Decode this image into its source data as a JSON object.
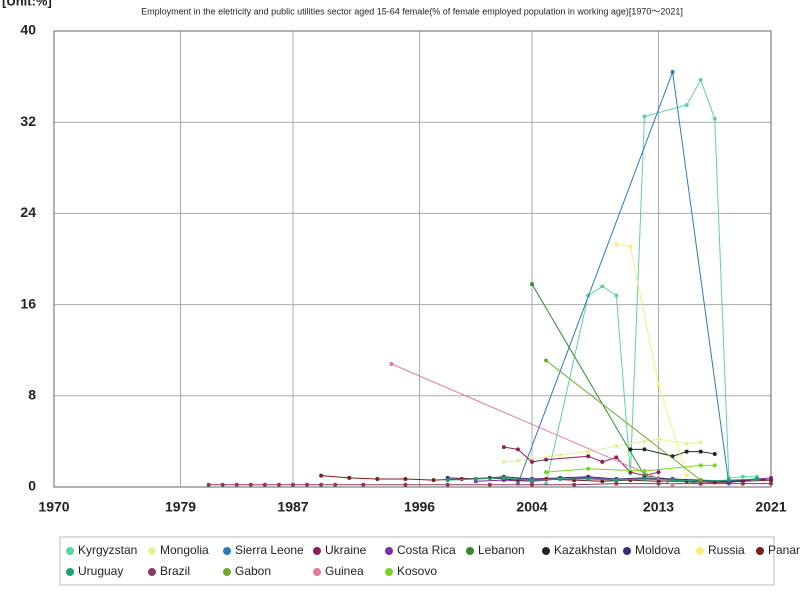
{
  "chart_data": {
    "type": "line",
    "unit": "[Unit:%]",
    "title": "Employment in the eletricity and public utilities sector aged 15-64 female(% of female employed population in working age)[1970～2021]",
    "xlim": [
      1970,
      2021
    ],
    "xticks": [
      1970,
      1979,
      1987,
      1996,
      2004,
      2013,
      2021
    ],
    "ylim": [
      0,
      40
    ],
    "yticks": [
      0,
      8,
      16,
      24,
      32,
      40
    ],
    "grid": true,
    "series": [
      {
        "name": "Kyrgyzstan",
        "color": "#5dd39e",
        "x": [
          2005,
          2008,
          2009,
          2010,
          2011,
          2012,
          2015,
          2016,
          2017,
          2018,
          2019,
          2020
        ],
        "values": [
          0.3,
          16.8,
          17.6,
          16.8,
          1.2,
          32.5,
          33.5,
          35.7,
          32.3,
          0.8,
          0.9,
          0.9
        ]
      },
      {
        "name": "Mongolia",
        "color": "#dff29a",
        "x": [
          2002,
          2003,
          2004,
          2006,
          2008,
          2010,
          2012,
          2013,
          2015,
          2016
        ],
        "values": [
          2.2,
          2.3,
          2.5,
          2.8,
          3.1,
          3.6,
          4.0,
          4.2,
          3.8,
          3.9
        ]
      },
      {
        "name": "Sierra Leone",
        "color": "#2b7bba",
        "x": [
          2003,
          2014,
          2018
        ],
        "values": [
          0.3,
          36.4,
          0.3
        ]
      },
      {
        "name": "Ukraine",
        "color": "#8b2252",
        "x": [
          2002,
          2003,
          2004,
          2005,
          2008,
          2009,
          2010,
          2011,
          2012,
          2013
        ],
        "values": [
          3.5,
          3.3,
          2.2,
          2.4,
          2.7,
          2.2,
          2.6,
          1.3,
          1.0,
          1.3
        ]
      },
      {
        "name": "Costa Rica",
        "color": "#7b2fa0",
        "x": [
          2000,
          2002,
          2004,
          2006,
          2008,
          2010,
          2012,
          2014,
          2016,
          2018,
          2020,
          2021
        ],
        "values": [
          0.5,
          0.6,
          0.5,
          0.7,
          0.8,
          0.6,
          0.7,
          0.6,
          0.5,
          0.4,
          0.7,
          0.8
        ]
      },
      {
        "name": "Lebanon",
        "color": "#2e8b2e",
        "x": [
          2004,
          2012,
          2016
        ],
        "values": [
          17.8,
          1.0,
          0.3
        ]
      },
      {
        "name": "Kazakhstan",
        "color": "#1a2a20",
        "x": [
          2011,
          2012,
          2014,
          2015,
          2016,
          2017
        ],
        "values": [
          3.3,
          3.3,
          2.7,
          3.1,
          3.1,
          2.9
        ]
      },
      {
        "name": "Moldova",
        "color": "#3b2a7a",
        "x": [
          1998,
          2000,
          2002,
          2004,
          2006,
          2008,
          2010,
          2012,
          2014,
          2016,
          2018,
          2020,
          2021
        ],
        "values": [
          0.8,
          0.7,
          0.9,
          0.7,
          0.8,
          0.9,
          0.7,
          0.8,
          0.7,
          0.6,
          0.5,
          0.7,
          0.6
        ]
      },
      {
        "name": "Russia",
        "color": "#f5f07a",
        "x": [
          2010,
          2011,
          2013,
          2015
        ],
        "values": [
          21.3,
          21.1,
          9.0,
          1.0
        ]
      },
      {
        "name": "Panama",
        "color": "#7a1f1f",
        "x": [
          1989,
          1991,
          1993,
          1995,
          1997,
          1999,
          2001,
          2003,
          2005,
          2007,
          2009,
          2011,
          2013,
          2015,
          2017,
          2019,
          2021
        ],
        "values": [
          1.0,
          0.8,
          0.7,
          0.7,
          0.6,
          0.7,
          0.8,
          0.6,
          0.7,
          0.6,
          0.5,
          0.6,
          0.5,
          0.5,
          0.4,
          0.5,
          0.6
        ]
      },
      {
        "name": "Uruguay",
        "color": "#1aa37a",
        "x": [
          1998,
          2000,
          2002,
          2004,
          2006,
          2008,
          2010,
          2012,
          2014,
          2016,
          2018,
          2020
        ],
        "values": [
          0.6,
          0.7,
          0.8,
          0.6,
          0.7,
          0.7,
          0.6,
          0.7,
          0.6,
          0.5,
          0.6,
          0.7
        ]
      },
      {
        "name": "Brazil",
        "color": "#8b3a62",
        "x": [
          1981,
          1982,
          1983,
          1984,
          1985,
          1986,
          1987,
          1988,
          1989,
          1990,
          1992,
          1995,
          1998,
          2001,
          2004,
          2007,
          2010,
          2013,
          2016,
          2019,
          2021
        ],
        "values": [
          0.2,
          0.2,
          0.2,
          0.2,
          0.2,
          0.2,
          0.2,
          0.2,
          0.2,
          0.2,
          0.2,
          0.2,
          0.2,
          0.2,
          0.2,
          0.2,
          0.3,
          0.3,
          0.3,
          0.3,
          0.3
        ]
      },
      {
        "name": "Gabon",
        "color": "#6aaa2a",
        "x": [
          2005,
          2016
        ],
        "values": [
          11.1,
          0.6
        ]
      },
      {
        "name": "Guinea",
        "color": "#e07aa0",
        "x": [
          1994,
          2014
        ],
        "values": [
          10.8,
          0.2
        ]
      },
      {
        "name": "Kosovo",
        "color": "#7ed321",
        "x": [
          2005,
          2008,
          2012,
          2016,
          2017
        ],
        "values": [
          1.3,
          1.6,
          1.4,
          1.9,
          1.9
        ]
      }
    ]
  }
}
